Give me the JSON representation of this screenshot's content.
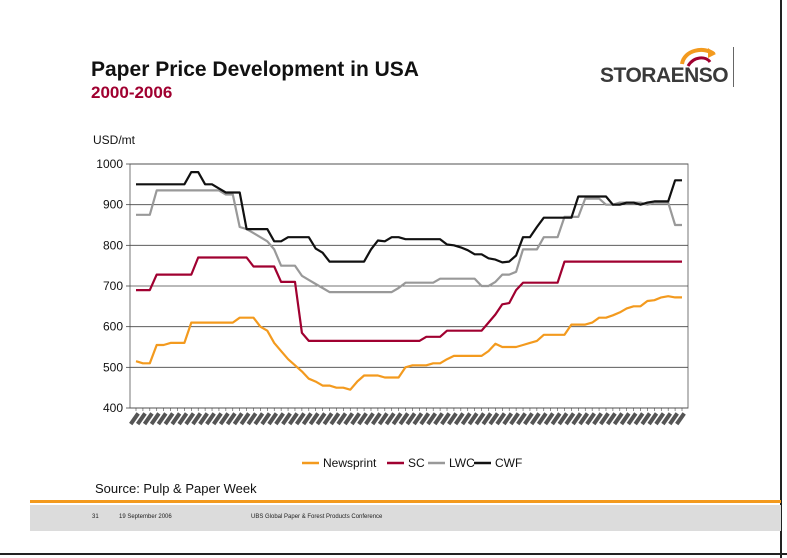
{
  "slide": {
    "title": "Paper Price Development in USA",
    "subtitle": "2000-2006",
    "source": "Source: Pulp & Paper Week",
    "logo_text": "STORAENSO",
    "footer": {
      "page": "31",
      "date": "19 September 2006",
      "event": "UBS Global Paper & Forest Products Conference"
    },
    "colors": {
      "title": "#111111",
      "subtitle": "#a00030",
      "accent": "#f39a1e",
      "footer_bg": "#dcdcdc"
    }
  },
  "chart_data": {
    "type": "line",
    "ylabel": "USD/mt",
    "ylim": [
      400,
      1000
    ],
    "yticks": [
      1000,
      900,
      800,
      700,
      600,
      500,
      400
    ],
    "x_count": 80,
    "series": [
      {
        "name": "Newsprint",
        "color": "#f39a1e",
        "points": [
          [
            0,
            515
          ],
          [
            1,
            510
          ],
          [
            2,
            510
          ],
          [
            3,
            555
          ],
          [
            4,
            555
          ],
          [
            5,
            560
          ],
          [
            6,
            560
          ],
          [
            7,
            560
          ],
          [
            8,
            610
          ],
          [
            9,
            610
          ],
          [
            10,
            610
          ],
          [
            11,
            610
          ],
          [
            12,
            610
          ],
          [
            13,
            610
          ],
          [
            14,
            610
          ],
          [
            15,
            622
          ],
          [
            16,
            622
          ],
          [
            17,
            622
          ],
          [
            18,
            600
          ],
          [
            19,
            590
          ],
          [
            20,
            560
          ],
          [
            21,
            540
          ],
          [
            22,
            520
          ],
          [
            23,
            505
          ],
          [
            24,
            490
          ],
          [
            25,
            472
          ],
          [
            26,
            465
          ],
          [
            27,
            455
          ],
          [
            28,
            455
          ],
          [
            29,
            450
          ],
          [
            30,
            450
          ],
          [
            31,
            445
          ],
          [
            32,
            465
          ],
          [
            33,
            480
          ],
          [
            34,
            480
          ],
          [
            35,
            480
          ],
          [
            36,
            475
          ],
          [
            37,
            475
          ],
          [
            38,
            475
          ],
          [
            39,
            500
          ],
          [
            40,
            505
          ],
          [
            41,
            505
          ],
          [
            42,
            505
          ],
          [
            43,
            510
          ],
          [
            44,
            510
          ],
          [
            45,
            520
          ],
          [
            46,
            528
          ],
          [
            47,
            528
          ],
          [
            48,
            528
          ],
          [
            49,
            528
          ],
          [
            50,
            528
          ],
          [
            51,
            540
          ],
          [
            52,
            558
          ],
          [
            53,
            550
          ],
          [
            54,
            550
          ],
          [
            55,
            550
          ],
          [
            56,
            555
          ],
          [
            57,
            560
          ],
          [
            58,
            565
          ],
          [
            59,
            580
          ],
          [
            60,
            580
          ],
          [
            61,
            580
          ],
          [
            62,
            580
          ],
          [
            63,
            605
          ],
          [
            64,
            605
          ],
          [
            65,
            605
          ],
          [
            66,
            610
          ],
          [
            67,
            622
          ],
          [
            68,
            622
          ],
          [
            69,
            628
          ],
          [
            70,
            635
          ],
          [
            71,
            645
          ],
          [
            72,
            650
          ],
          [
            73,
            650
          ],
          [
            74,
            663
          ],
          [
            75,
            665
          ],
          [
            76,
            672
          ],
          [
            77,
            675
          ],
          [
            78,
            672
          ],
          [
            79,
            672
          ]
        ]
      },
      {
        "name": "SC",
        "color": "#a00030",
        "points": [
          [
            0,
            690
          ],
          [
            1,
            690
          ],
          [
            2,
            690
          ],
          [
            3,
            728
          ],
          [
            4,
            728
          ],
          [
            5,
            728
          ],
          [
            6,
            728
          ],
          [
            7,
            728
          ],
          [
            8,
            728
          ],
          [
            9,
            770
          ],
          [
            10,
            770
          ],
          [
            11,
            770
          ],
          [
            12,
            770
          ],
          [
            13,
            770
          ],
          [
            14,
            770
          ],
          [
            15,
            770
          ],
          [
            16,
            770
          ],
          [
            17,
            748
          ],
          [
            18,
            748
          ],
          [
            19,
            748
          ],
          [
            20,
            748
          ],
          [
            21,
            710
          ],
          [
            22,
            710
          ],
          [
            23,
            710
          ],
          [
            24,
            585
          ],
          [
            25,
            565
          ],
          [
            26,
            565
          ],
          [
            38,
            565
          ],
          [
            39,
            565
          ],
          [
            40,
            565
          ],
          [
            41,
            565
          ],
          [
            42,
            575
          ],
          [
            43,
            575
          ],
          [
            44,
            575
          ],
          [
            45,
            590
          ],
          [
            46,
            590
          ],
          [
            47,
            590
          ],
          [
            48,
            590
          ],
          [
            49,
            590
          ],
          [
            50,
            590
          ],
          [
            51,
            610
          ],
          [
            52,
            630
          ],
          [
            53,
            655
          ],
          [
            54,
            658
          ],
          [
            55,
            690
          ],
          [
            56,
            708
          ],
          [
            57,
            708
          ],
          [
            58,
            708
          ],
          [
            59,
            708
          ],
          [
            60,
            708
          ],
          [
            61,
            708
          ],
          [
            62,
            760
          ],
          [
            79,
            760
          ]
        ]
      },
      {
        "name": "LWC",
        "color": "#999999",
        "points": [
          [
            0,
            875
          ],
          [
            1,
            875
          ],
          [
            2,
            875
          ],
          [
            3,
            935
          ],
          [
            4,
            935
          ],
          [
            5,
            935
          ],
          [
            6,
            935
          ],
          [
            7,
            935
          ],
          [
            8,
            935
          ],
          [
            9,
            935
          ],
          [
            10,
            935
          ],
          [
            11,
            935
          ],
          [
            12,
            935
          ],
          [
            13,
            925
          ],
          [
            14,
            925
          ],
          [
            15,
            845
          ],
          [
            16,
            840
          ],
          [
            17,
            830
          ],
          [
            18,
            820
          ],
          [
            19,
            810
          ],
          [
            20,
            790
          ],
          [
            21,
            750
          ],
          [
            22,
            750
          ],
          [
            23,
            750
          ],
          [
            24,
            725
          ],
          [
            25,
            715
          ],
          [
            26,
            705
          ],
          [
            27,
            695
          ],
          [
            28,
            685
          ],
          [
            29,
            685
          ],
          [
            30,
            685
          ],
          [
            31,
            685
          ],
          [
            32,
            685
          ],
          [
            33,
            685
          ],
          [
            34,
            685
          ],
          [
            35,
            685
          ],
          [
            36,
            685
          ],
          [
            37,
            685
          ],
          [
            38,
            695
          ],
          [
            39,
            708
          ],
          [
            40,
            708
          ],
          [
            41,
            708
          ],
          [
            42,
            708
          ],
          [
            43,
            708
          ],
          [
            44,
            718
          ],
          [
            45,
            718
          ],
          [
            46,
            718
          ],
          [
            47,
            718
          ],
          [
            48,
            718
          ],
          [
            49,
            718
          ],
          [
            50,
            700
          ],
          [
            51,
            700
          ],
          [
            52,
            710
          ],
          [
            53,
            728
          ],
          [
            54,
            728
          ],
          [
            55,
            735
          ],
          [
            56,
            790
          ],
          [
            57,
            790
          ],
          [
            58,
            790
          ],
          [
            59,
            820
          ],
          [
            60,
            820
          ],
          [
            61,
            820
          ],
          [
            62,
            870
          ],
          [
            63,
            870
          ],
          [
            64,
            870
          ],
          [
            65,
            915
          ],
          [
            66,
            915
          ],
          [
            67,
            915
          ],
          [
            68,
            900
          ],
          [
            69,
            900
          ],
          [
            70,
            905
          ],
          [
            71,
            905
          ],
          [
            72,
            905
          ],
          [
            73,
            905
          ],
          [
            74,
            900
          ],
          [
            75,
            905
          ],
          [
            76,
            905
          ],
          [
            77,
            905
          ],
          [
            78,
            850
          ],
          [
            79,
            850
          ]
        ]
      },
      {
        "name": "CWF",
        "color": "#111111",
        "points": [
          [
            0,
            950
          ],
          [
            1,
            950
          ],
          [
            2,
            950
          ],
          [
            3,
            950
          ],
          [
            4,
            950
          ],
          [
            5,
            950
          ],
          [
            6,
            950
          ],
          [
            7,
            950
          ],
          [
            8,
            980
          ],
          [
            9,
            980
          ],
          [
            10,
            950
          ],
          [
            11,
            950
          ],
          [
            12,
            940
          ],
          [
            13,
            930
          ],
          [
            14,
            930
          ],
          [
            15,
            930
          ],
          [
            16,
            840
          ],
          [
            17,
            840
          ],
          [
            18,
            840
          ],
          [
            19,
            840
          ],
          [
            20,
            810
          ],
          [
            21,
            810
          ],
          [
            22,
            820
          ],
          [
            23,
            820
          ],
          [
            24,
            820
          ],
          [
            25,
            820
          ],
          [
            26,
            792
          ],
          [
            27,
            782
          ],
          [
            28,
            760
          ],
          [
            29,
            760
          ],
          [
            30,
            760
          ],
          [
            31,
            760
          ],
          [
            32,
            760
          ],
          [
            33,
            760
          ],
          [
            34,
            790
          ],
          [
            35,
            812
          ],
          [
            36,
            810
          ],
          [
            37,
            820
          ],
          [
            38,
            820
          ],
          [
            39,
            815
          ],
          [
            40,
            815
          ],
          [
            41,
            815
          ],
          [
            42,
            815
          ],
          [
            43,
            815
          ],
          [
            44,
            815
          ],
          [
            45,
            802
          ],
          [
            46,
            800
          ],
          [
            47,
            795
          ],
          [
            48,
            788
          ],
          [
            49,
            778
          ],
          [
            50,
            778
          ],
          [
            51,
            768
          ],
          [
            52,
            765
          ],
          [
            53,
            758
          ],
          [
            54,
            760
          ],
          [
            55,
            775
          ],
          [
            56,
            820
          ],
          [
            57,
            820
          ],
          [
            58,
            845
          ],
          [
            59,
            868
          ],
          [
            60,
            868
          ],
          [
            61,
            868
          ],
          [
            62,
            868
          ],
          [
            63,
            868
          ],
          [
            64,
            920
          ],
          [
            65,
            920
          ],
          [
            66,
            920
          ],
          [
            67,
            920
          ],
          [
            68,
            920
          ],
          [
            69,
            900
          ],
          [
            70,
            900
          ],
          [
            71,
            905
          ],
          [
            72,
            905
          ],
          [
            73,
            900
          ],
          [
            74,
            905
          ],
          [
            75,
            908
          ],
          [
            76,
            908
          ],
          [
            77,
            908
          ],
          [
            78,
            960
          ],
          [
            79,
            960
          ]
        ]
      }
    ]
  }
}
